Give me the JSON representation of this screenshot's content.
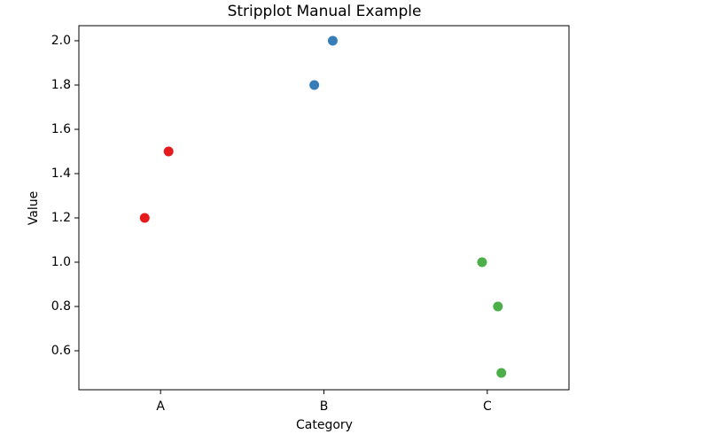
{
  "chart_data": {
    "type": "scatter",
    "title": "Stripplot Manual Example",
    "x_label": "Category",
    "y_label": "Value",
    "xlim": [
      -0.5,
      2.5
    ],
    "xticks": [
      {
        "value": 0,
        "label": "A"
      },
      {
        "value": 1,
        "label": "B"
      },
      {
        "value": 2,
        "label": "C"
      }
    ],
    "ylim": [
      0.424,
      2.068
    ],
    "yticks": [
      0.6,
      0.8,
      {
        "value": 1,
        "label": "1.0"
      },
      1.2,
      1.4,
      1.6,
      1.8,
      {
        "value": 2,
        "label": "2.0"
      }
    ],
    "grid": false,
    "series": [
      {
        "color": "#e41a1c",
        "x": [
          -0.097,
          0.049
        ],
        "values": [
          1.2,
          1.5
        ]
      },
      {
        "color": "#377eb8",
        "x": [
          0.941,
          1.054
        ],
        "values": [
          1.8,
          2.0
        ]
      },
      {
        "color": "#4daf4a",
        "x": [
          1.968,
          2.065,
          2.086
        ],
        "values": [
          1.0,
          0.8,
          0.5
        ]
      }
    ]
  }
}
